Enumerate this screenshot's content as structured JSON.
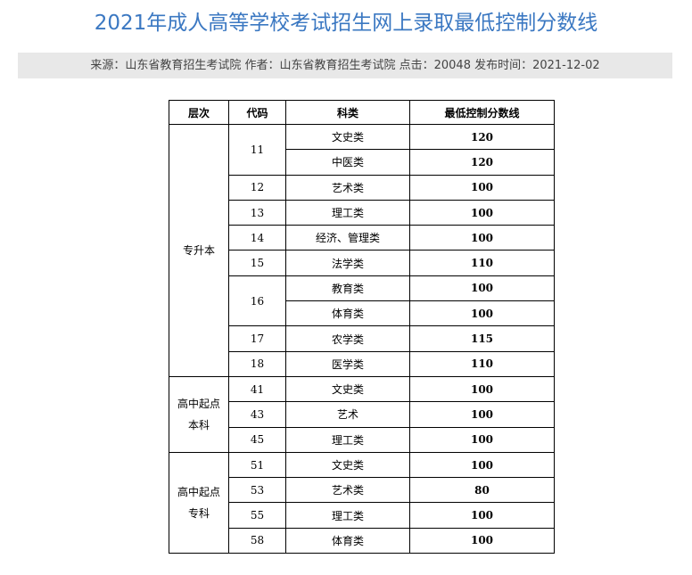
{
  "title": "2021年成人高等学校考试招生网上录取最低控制分数线",
  "meta": "来源：山东省教育招生考试院 作者：山东省教育招生考试院 点击：20048 发布时间：2021-12-02",
  "table": {
    "headers": [
      "层次",
      "代码",
      "科类",
      "最低控制分数线"
    ],
    "groups": [
      {
        "level": [
          "专升本"
        ],
        "codes": [
          {
            "code": "11",
            "subjects": [
              {
                "name": "文史类",
                "score": "120"
              },
              {
                "name": "中医类",
                "score": "120"
              }
            ]
          },
          {
            "code": "12",
            "subjects": [
              {
                "name": "艺术类",
                "score": "100"
              }
            ]
          },
          {
            "code": "13",
            "subjects": [
              {
                "name": "理工类",
                "score": "100"
              }
            ]
          },
          {
            "code": "14",
            "subjects": [
              {
                "name": "经济、管理类",
                "score": "100"
              }
            ]
          },
          {
            "code": "15",
            "subjects": [
              {
                "name": "法学类",
                "score": "110"
              }
            ]
          },
          {
            "code": "16",
            "subjects": [
              {
                "name": "教育类",
                "score": "100"
              },
              {
                "name": "体育类",
                "score": "100"
              }
            ]
          },
          {
            "code": "17",
            "subjects": [
              {
                "name": "农学类",
                "score": "115"
              }
            ]
          },
          {
            "code": "18",
            "subjects": [
              {
                "name": "医学类",
                "score": "110"
              }
            ]
          }
        ]
      },
      {
        "level": [
          "高中起点",
          "本科"
        ],
        "codes": [
          {
            "code": "41",
            "subjects": [
              {
                "name": "文史类",
                "score": "100"
              }
            ]
          },
          {
            "code": "43",
            "subjects": [
              {
                "name": "艺术",
                "score": "100"
              }
            ]
          },
          {
            "code": "45",
            "subjects": [
              {
                "name": "理工类",
                "score": "100"
              }
            ]
          }
        ]
      },
      {
        "level": [
          "高中起点",
          "专科"
        ],
        "codes": [
          {
            "code": "51",
            "subjects": [
              {
                "name": "文史类",
                "score": "100"
              }
            ]
          },
          {
            "code": "53",
            "subjects": [
              {
                "name": "艺术类",
                "score": "80"
              }
            ]
          },
          {
            "code": "55",
            "subjects": [
              {
                "name": "理工类",
                "score": "100"
              }
            ]
          },
          {
            "code": "58",
            "subjects": [
              {
                "name": "体育类",
                "score": "100"
              }
            ]
          }
        ]
      }
    ]
  }
}
